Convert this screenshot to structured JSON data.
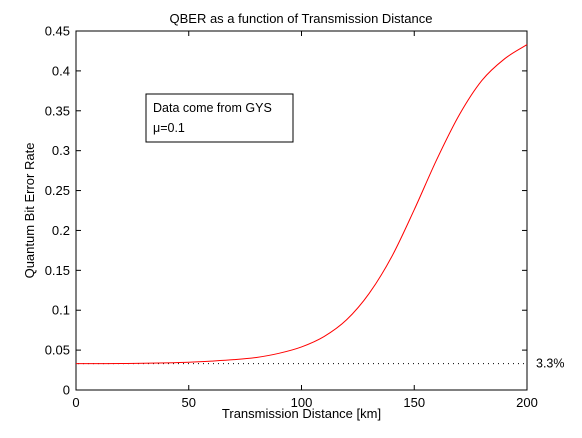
{
  "chart_data": {
    "type": "line",
    "title": "QBER as a function of Transmission Distance",
    "xlabel": "Transmission Distance [km]",
    "ylabel": "Quantum Bit Error Rate",
    "xlim": [
      0,
      200
    ],
    "ylim": [
      0,
      0.45
    ],
    "xticks": [
      0,
      50,
      100,
      150,
      200
    ],
    "yticks": [
      0,
      0.05,
      0.1,
      0.15,
      0.2,
      0.25,
      0.3,
      0.35,
      0.4,
      0.45
    ],
    "xtick_labels": [
      "0",
      "50",
      "100",
      "150",
      "200"
    ],
    "ytick_labels": [
      "0",
      "0.05",
      "0.1",
      "0.15",
      "0.2",
      "0.25",
      "0.3",
      "0.35",
      "0.4",
      "0.45"
    ],
    "grid": false,
    "series": [
      {
        "color": "#ff0000",
        "x": [
          0,
          10,
          20,
          30,
          40,
          50,
          60,
          70,
          80,
          90,
          100,
          110,
          120,
          130,
          140,
          150,
          160,
          170,
          180,
          190,
          200
        ],
        "y": [
          0.033,
          0.0331,
          0.0332,
          0.0335,
          0.034,
          0.0348,
          0.0362,
          0.038,
          0.0408,
          0.046,
          0.054,
          0.067,
          0.088,
          0.121,
          0.167,
          0.226,
          0.289,
          0.345,
          0.388,
          0.415,
          0.433
        ]
      }
    ],
    "reference_line": {
      "y": 0.033,
      "style": "dotted",
      "label": "3.3%"
    },
    "annotation": {
      "lines": [
        "Data come from GYS",
        "μ=0.1"
      ]
    }
  }
}
